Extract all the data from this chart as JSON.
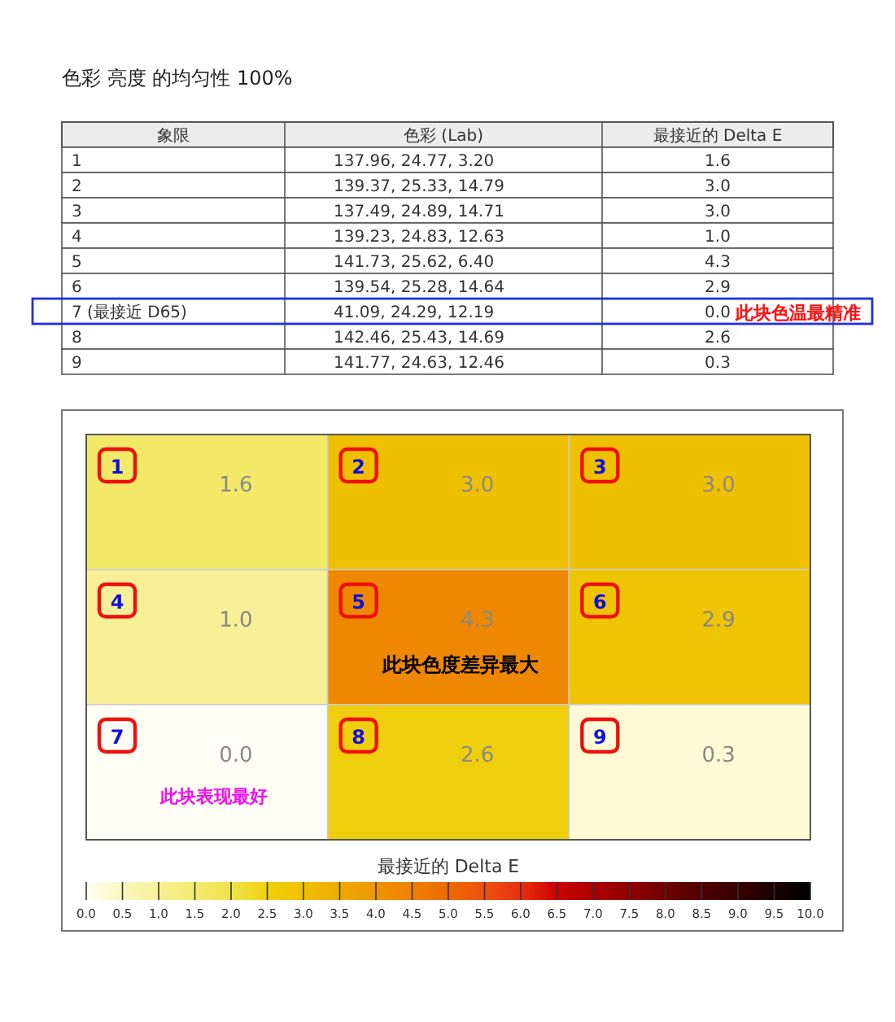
{
  "chart_data": [
    {
      "type": "other",
      "title": "色彩 亮度 的均匀性 100%",
      "annotations": [
        "象限",
        "色彩 (Lab)",
        "最接近的 Delta E",
        "1",
        "137.96, 24.77, 3.20",
        "1.6",
        "2",
        "139.37, 25.33, 14.79",
        "3.0",
        "3",
        "137.49, 24.89, 14.71",
        "3.0",
        "4",
        "139.23, 24.83, 12.63",
        "1.0",
        "5",
        "141.73, 25.62, 6.40",
        "4.3",
        "6",
        "139.54, 25.28, 14.64",
        "2.9",
        "7 (最接近 D65)",
        "41.09, 24.29, 12.19",
        "0.0",
        "8",
        "142.46, 25.43, 14.69",
        "2.6",
        "9",
        "141.77, 24.63, 12.46",
        "0.3",
        "此块色温最精准"
      ]
    },
    {
      "type": "heatmap",
      "categories": [
        null,
        null,
        null
      ],
      "y_categories": [
        null,
        null,
        null
      ],
      "cells": [
        [
          1.6,
          3.0,
          3.0
        ],
        [
          1.0,
          4.3,
          2.9
        ],
        [
          0.0,
          2.6,
          0.3
        ]
      ],
      "cell_labels": [
        [
          "1.6",
          "3.0",
          "3.0"
        ],
        [
          "1.0",
          "4.3",
          "2.9"
        ],
        [
          "0.0",
          "2.6",
          "0.3"
        ]
      ],
      "clabel": "最接近的 Delta E",
      "clim": [
        0,
        10
      ],
      "cticks": [
        {
          "value": 0,
          "label": "0.0"
        },
        {
          "value": 0.5,
          "label": "0.5"
        },
        {
          "value": 1,
          "label": "1.0"
        },
        {
          "value": 1.5,
          "label": "1.5"
        },
        {
          "value": 2,
          "label": "2.0"
        },
        {
          "value": 2.5,
          "label": "2.5"
        },
        {
          "value": 3,
          "label": "3.0"
        },
        {
          "value": 3.5,
          "label": "3.5"
        },
        {
          "value": 4,
          "label": "4.0"
        },
        {
          "value": 4.5,
          "label": "4.5"
        },
        {
          "value": 5,
          "label": "5.0"
        },
        {
          "value": 5.5,
          "label": "5.5"
        },
        {
          "value": 6,
          "label": "6.0"
        },
        {
          "value": 6.5,
          "label": "6.5"
        },
        {
          "value": 7,
          "label": "7.0"
        },
        {
          "value": 7.5,
          "label": "7.5"
        },
        {
          "value": 8,
          "label": "8.0"
        },
        {
          "value": 8.5,
          "label": "8.5"
        },
        {
          "value": 9,
          "label": "9.0"
        },
        {
          "value": 9.5,
          "label": "9.5"
        },
        {
          "value": 10,
          "label": "10.0"
        }
      ],
      "annotations": [
        "1",
        "2",
        "3",
        "4",
        "5",
        "6",
        "7",
        "8",
        "9",
        "此块色度差异最大",
        "此块表现最好"
      ]
    }
  ]
}
